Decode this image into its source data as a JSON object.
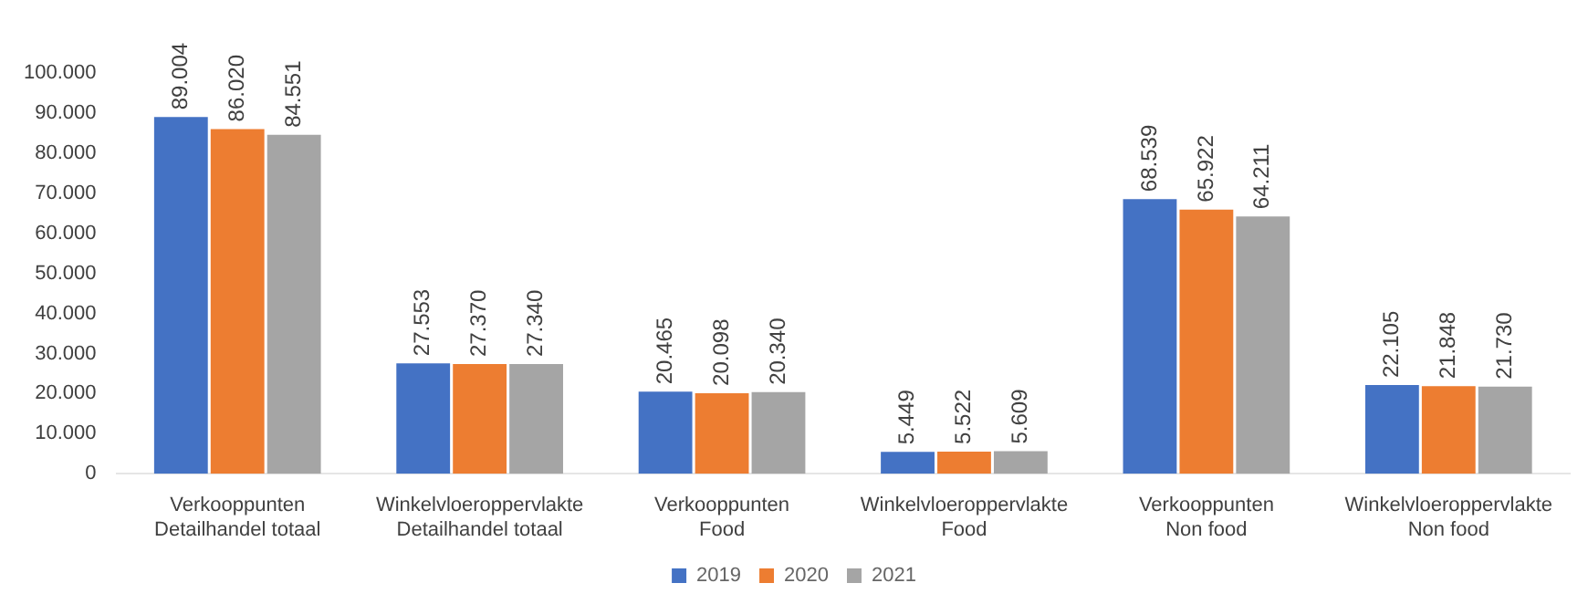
{
  "chart_data": {
    "type": "bar",
    "categories": [
      "Verkooppunten\nDetailhandel totaal",
      "Winkelvloeroppervlakte\nDetailhandel totaal",
      "Verkooppunten\nFood",
      "Winkelvloeroppervlakte\nFood",
      "Verkooppunten\nNon food",
      "Winkelvloeroppervlakte\nNon food"
    ],
    "series": [
      {
        "name": "2019",
        "color": "#4472c4",
        "values": [
          89004,
          27553,
          20465,
          5449,
          68539,
          22105
        ],
        "value_labels": [
          "89.004",
          "27.553",
          "20.465",
          "5.449",
          "68.539",
          "22.105"
        ]
      },
      {
        "name": "2020",
        "color": "#ed7d31",
        "values": [
          86020,
          27370,
          20098,
          5522,
          65922,
          21848
        ],
        "value_labels": [
          "86.020",
          "27.370",
          "20.098",
          "5.522",
          "65.922",
          "21.848"
        ]
      },
      {
        "name": "2021",
        "color": "#a5a5a5",
        "values": [
          84551,
          27340,
          20340,
          5609,
          64211,
          21730
        ],
        "value_labels": [
          "84.551",
          "27.340",
          "20.340",
          "5.609",
          "64.211",
          "21.730"
        ]
      }
    ],
    "ylim": [
      0,
      100000
    ],
    "yticks": [
      {
        "value": 0,
        "label": "0"
      },
      {
        "value": 10000,
        "label": "10.000"
      },
      {
        "value": 20000,
        "label": "20.000"
      },
      {
        "value": 30000,
        "label": "30.000"
      },
      {
        "value": 40000,
        "label": "40.000"
      },
      {
        "value": 50000,
        "label": "50.000"
      },
      {
        "value": 60000,
        "label": "60.000"
      },
      {
        "value": 70000,
        "label": "70.000"
      },
      {
        "value": 80000,
        "label": "80.000"
      },
      {
        "value": 90000,
        "label": "90.000"
      },
      {
        "value": 100000,
        "label": "100.000"
      }
    ],
    "grid": false,
    "legend": "bottom"
  }
}
